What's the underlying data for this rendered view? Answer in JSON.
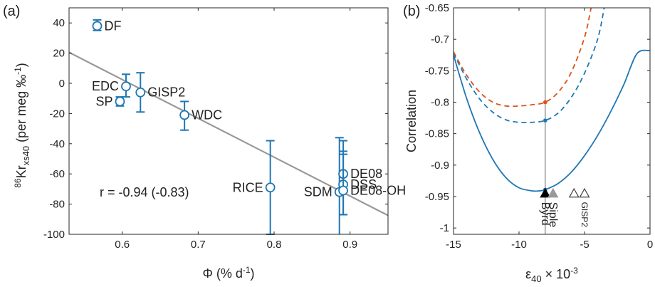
{
  "chart_data": [
    {
      "type": "scatter",
      "panel_label": "(a)",
      "xlabel": "Φ (% d",
      "xlabel_sup": "-1",
      "xlabel_close": ")",
      "ylabel_sup": "86",
      "ylabel_main": "Kr",
      "ylabel_sub": "xs40",
      "ylabel_unit": " (per meg ‰",
      "ylabel_unit_sup": "-1",
      "ylabel_close": ")",
      "xlim": [
        0.53,
        0.95
      ],
      "ylim": [
        -100,
        50
      ],
      "xticks": [
        0.6,
        0.7,
        0.8,
        0.9
      ],
      "xtick_labels": [
        "0.6",
        "0.7",
        "0.8",
        "0.9"
      ],
      "yticks": [
        40,
        20,
        0,
        -20,
        -40,
        -60,
        -80,
        -100
      ],
      "ytick_labels": [
        "40",
        "20",
        "0",
        "-20",
        "-40",
        "-60",
        "-80",
        "-100"
      ],
      "grid": false,
      "marker_color": "#1f77b4",
      "fit_color": "#999999",
      "annotation": "r = -0.94 (-0.83)",
      "fit_line": {
        "x": [
          0.53,
          0.95
        ],
        "y": [
          20.5,
          -87.5
        ]
      },
      "points": [
        {
          "label": "DF",
          "x": 0.567,
          "y": 38,
          "yerr_low": 35,
          "yerr_high": 42,
          "label_side": "right"
        },
        {
          "label": "EDC",
          "x": 0.605,
          "y": -2,
          "yerr_low": -9,
          "yerr_high": 6,
          "label_side": "left"
        },
        {
          "label": "SP",
          "x": 0.597,
          "y": -12,
          "yerr_low": -15,
          "yerr_high": -9,
          "label_side": "left"
        },
        {
          "label": "GISP2",
          "x": 0.624,
          "y": -6,
          "yerr_low": -19,
          "yerr_high": 7,
          "label_side": "right"
        },
        {
          "label": "WDC",
          "x": 0.682,
          "y": -21,
          "yerr_low": -31,
          "yerr_high": -12,
          "label_side": "right"
        },
        {
          "label": "RICE",
          "x": 0.795,
          "y": -69,
          "yerr_low": -100,
          "yerr_high": -38,
          "label_side": "left"
        },
        {
          "label": "SDM",
          "x": 0.886,
          "y": -72,
          "yerr_low": -106,
          "yerr_high": -36,
          "label_side": "left"
        },
        {
          "label": "DE08",
          "x": 0.891,
          "y": -60,
          "yerr_low": -87,
          "yerr_high": -38,
          "label_side": "right"
        },
        {
          "label": "DSS",
          "x": 0.891,
          "y": -67,
          "yerr_low": -87,
          "yerr_high": -45,
          "label_side": "right"
        },
        {
          "label": "DE08-OH",
          "x": 0.891,
          "y": -71,
          "yerr_low": -87,
          "yerr_high": -47,
          "label_side": "right"
        }
      ]
    },
    {
      "type": "line",
      "panel_label": "(b)",
      "xlabel_main": "ε",
      "xlabel_sub": "40",
      "xlabel_tail": " × 10",
      "xlabel_sup": "-3",
      "ylabel": "Correlation",
      "xlim": [
        -15,
        0
      ],
      "ylim": [
        -1.01,
        -0.65
      ],
      "xticks": [
        -15,
        -10,
        -5,
        0
      ],
      "xtick_labels": [
        "-15",
        "-10",
        "-5",
        "0"
      ],
      "yticks": [
        -0.65,
        -0.7,
        -0.75,
        -0.8,
        -0.85,
        -0.9,
        -0.95,
        -1
      ],
      "ytick_labels": [
        "-0.65",
        "-0.7",
        "-0.75",
        "-0.8",
        "-0.85",
        "-0.9",
        "-0.95",
        "-1"
      ],
      "grid": false,
      "vline_x": -8,
      "vline_color": "#999999",
      "series": [
        {
          "style": "solid",
          "color": "#1f77b4",
          "x": [
            -15,
            -14,
            -13,
            -12,
            -11,
            -10,
            -9,
            -8.5,
            -8,
            -7,
            -6,
            -5,
            -4,
            -3,
            -2,
            -1,
            0
          ],
          "y": [
            -0.725,
            -0.794,
            -0.849,
            -0.891,
            -0.92,
            -0.936,
            -0.941,
            -0.941,
            -0.939,
            -0.929,
            -0.911,
            -0.885,
            -0.853,
            -0.815,
            -0.772,
            -0.723,
            -0.718
          ]
        },
        {
          "style": "dashed",
          "color": "#1f77b4",
          "x": [
            -15,
            -14,
            -13,
            -12,
            -11,
            -10,
            -9,
            -8,
            -7,
            -6,
            -5,
            -4,
            -3.5
          ],
          "y": [
            -0.722,
            -0.763,
            -0.795,
            -0.816,
            -0.828,
            -0.832,
            -0.832,
            -0.829,
            -0.817,
            -0.792,
            -0.754,
            -0.7,
            -0.65
          ]
        },
        {
          "style": "dashed",
          "color": "#d95319",
          "x": [
            -15,
            -14,
            -13,
            -12,
            -11,
            -10,
            -9,
            -8,
            -7,
            -6,
            -5,
            -4.5
          ],
          "y": [
            -0.72,
            -0.757,
            -0.784,
            -0.8,
            -0.806,
            -0.806,
            -0.804,
            -0.8,
            -0.784,
            -0.752,
            -0.697,
            -0.65
          ]
        }
      ],
      "highlight_points": [
        {
          "x": -8,
          "y": -0.939,
          "color": "#1f77b4"
        },
        {
          "x": -8,
          "y": -0.829,
          "color": "#1f77b4"
        },
        {
          "x": -8,
          "y": -0.8,
          "color": "#d95319"
        }
      ],
      "site_markers": [
        {
          "label": "Byrd",
          "x": -8,
          "y": -0.945,
          "fill": "#000000",
          "stroke": "#000000",
          "text_color": "#222222",
          "text_size": 16
        },
        {
          "label": "Siple",
          "x": -7.4,
          "y": -0.945,
          "fill": "#999999",
          "stroke": "#999999",
          "text_color": "#222222",
          "text_size": 16
        },
        {
          "label": "",
          "x": -5.8,
          "y": -0.945,
          "fill": "#ffffff",
          "stroke": "#444444"
        },
        {
          "label": "GISP2",
          "x": -5.0,
          "y": -0.945,
          "fill": "#ffffff",
          "stroke": "#444444",
          "text_color": "#666666",
          "text_size": 12
        }
      ]
    }
  ]
}
